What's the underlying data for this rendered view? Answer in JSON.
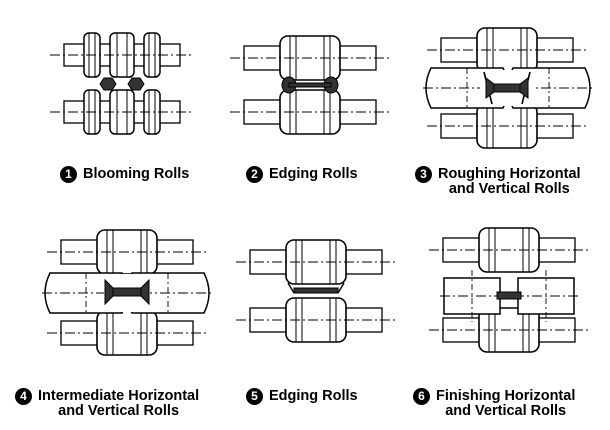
{
  "colors": {
    "stroke": "#000000",
    "fill": "#ffffff",
    "workpiece": "#333333"
  },
  "figures": [
    {
      "number": "1",
      "label": "Blooming Rolls"
    },
    {
      "number": "2",
      "label": "Edging Rolls"
    },
    {
      "number": "3",
      "label": "Roughing Horizontal",
      "label_line2": "and Vertical Rolls"
    },
    {
      "number": "4",
      "label": "Intermediate Horizontal",
      "label_line2": "and Vertical Rolls"
    },
    {
      "number": "5",
      "label": "Edging Rolls"
    },
    {
      "number": "6",
      "label": "Finishing Horizontal",
      "label_line2": "and Vertical Rolls"
    }
  ]
}
